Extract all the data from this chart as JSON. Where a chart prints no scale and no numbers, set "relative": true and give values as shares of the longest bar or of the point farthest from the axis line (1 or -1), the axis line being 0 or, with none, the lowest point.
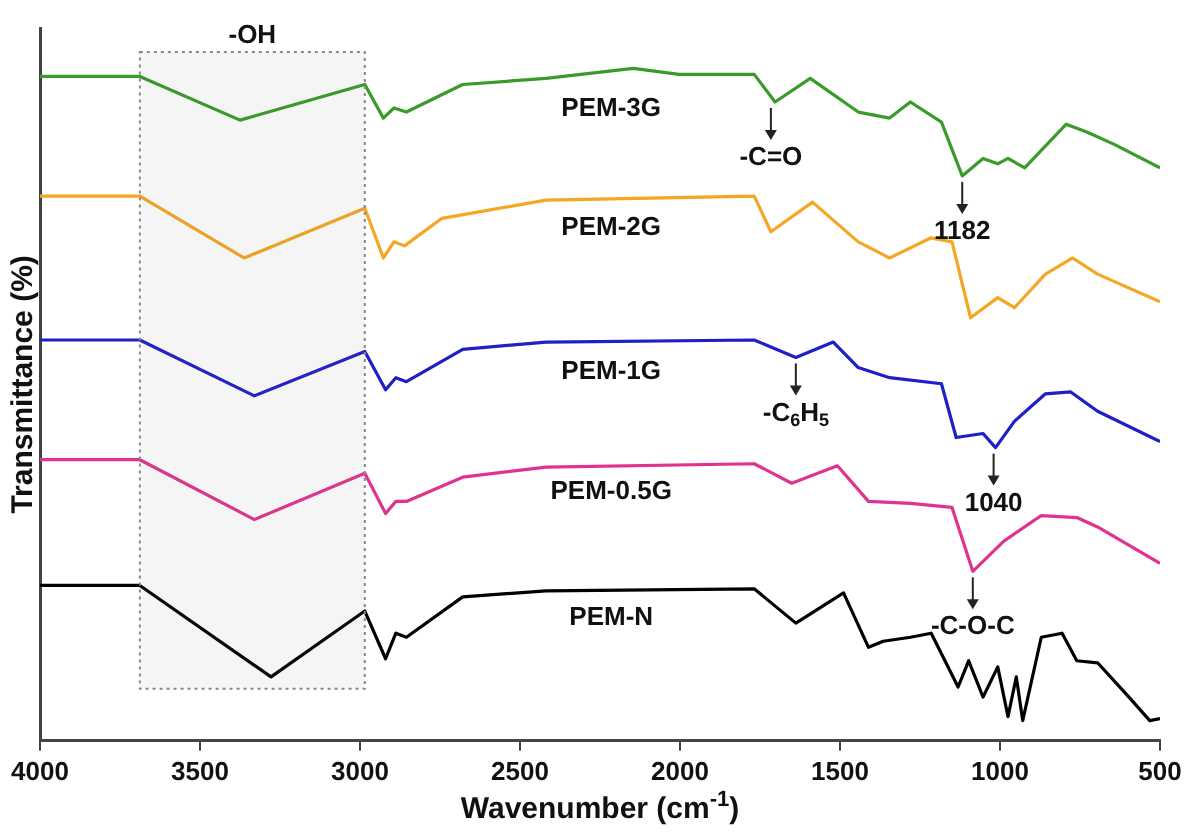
{
  "chart_data": {
    "type": "line",
    "relative": true,
    "xlabel": "Wavenumber (cm$^{-1}$)",
    "ylabel": "Transmittance (%)",
    "xlim": [
      4000,
      500
    ],
    "xticks": [
      4000,
      3500,
      3000,
      2500,
      2000,
      1500,
      1000,
      500
    ],
    "legend": false,
    "marker": "none",
    "line_style": "solid",
    "series": [
      {
        "name": "PEM-3G",
        "color": "#3a9a2a",
        "x": [
          4000,
          3688,
          3375,
          2985,
          2927,
          2894,
          2855,
          2679,
          2419,
          2146,
          2003,
          1768,
          1703,
          1593,
          1443,
          1345,
          1280,
          1183,
          1118,
          1053,
          1007,
          975,
          923,
          793,
          727,
          643,
          500
        ],
        "values": [
          0.988,
          0.988,
          0.923,
          0.976,
          0.926,
          0.941,
          0.935,
          0.976,
          0.985,
          1.0,
          0.991,
          0.991,
          0.95,
          0.985,
          0.935,
          0.926,
          0.95,
          0.92,
          0.84,
          0.866,
          0.858,
          0.866,
          0.852,
          0.917,
          0.905,
          0.887,
          0.852
        ]
      },
      {
        "name": "PEM-2G",
        "color": "#f5a623",
        "x": [
          4000,
          3688,
          3362,
          2985,
          2927,
          2894,
          2861,
          2744,
          2419,
          1768,
          1716,
          1586,
          1443,
          1345,
          1215,
          1150,
          1092,
          1007,
          955,
          858,
          773,
          695,
          500
        ],
        "values": [
          0.81,
          0.81,
          0.718,
          0.792,
          0.718,
          0.742,
          0.736,
          0.777,
          0.804,
          0.81,
          0.757,
          0.801,
          0.742,
          0.718,
          0.748,
          0.742,
          0.629,
          0.659,
          0.644,
          0.694,
          0.718,
          0.694,
          0.653
        ]
      },
      {
        "name": "PEM-1G",
        "color": "#1f1fc8",
        "x": [
          4000,
          3688,
          3330,
          2985,
          2920,
          2888,
          2855,
          2679,
          2419,
          1768,
          1638,
          1521,
          1443,
          1345,
          1183,
          1137,
          1053,
          1014,
          955,
          858,
          780,
          695,
          500
        ],
        "values": [
          0.596,
          0.596,
          0.513,
          0.579,
          0.522,
          0.54,
          0.534,
          0.582,
          0.593,
          0.596,
          0.57,
          0.593,
          0.555,
          0.54,
          0.531,
          0.451,
          0.457,
          0.436,
          0.475,
          0.516,
          0.519,
          0.49,
          0.445
        ]
      },
      {
        "name": "PEM-0.5G",
        "color": "#e0338f",
        "x": [
          4000,
          3688,
          3330,
          2985,
          2920,
          2888,
          2855,
          2679,
          2419,
          1768,
          1651,
          1508,
          1411,
          1280,
          1150,
          1085,
          988,
          871,
          760,
          695,
          500
        ],
        "values": [
          0.418,
          0.418,
          0.329,
          0.398,
          0.338,
          0.356,
          0.356,
          0.392,
          0.407,
          0.412,
          0.383,
          0.409,
          0.356,
          0.353,
          0.347,
          0.252,
          0.297,
          0.335,
          0.332,
          0.318,
          0.264
        ]
      },
      {
        "name": "PEM-N",
        "color": "#000000",
        "x": [
          4000,
          3688,
          3278,
          2985,
          2920,
          2888,
          2855,
          2679,
          2419,
          1768,
          1638,
          1489,
          1411,
          1365,
          1280,
          1215,
          1131,
          1098,
          1053,
          1007,
          975,
          949,
          929,
          871,
          806,
          760,
          695,
          597,
          532,
          500
        ],
        "values": [
          0.231,
          0.231,
          0.095,
          0.193,
          0.122,
          0.16,
          0.154,
          0.214,
          0.223,
          0.226,
          0.175,
          0.22,
          0.139,
          0.148,
          0.154,
          0.16,
          0.08,
          0.119,
          0.065,
          0.11,
          0.036,
          0.095,
          0.03,
          0.154,
          0.16,
          0.119,
          0.116,
          0.065,
          0.03,
          0.033
        ]
      }
    ],
    "bands": [
      {
        "axis": "x",
        "from": 3688,
        "to": 2985,
        "label": "-OH"
      }
    ],
    "annotations": [
      {
        "text": "-C=O",
        "x": 1716,
        "y": 0.95
      },
      {
        "text": "1182",
        "x": 1118,
        "y": 0.84
      },
      {
        "text": "-C$_{6}$H$_{5}$",
        "x": 1638,
        "y": 0.57
      },
      {
        "text": "1040",
        "x": 1020,
        "y": 0.436
      },
      {
        "text": "-C-O-C",
        "x": 1085,
        "y": 0.252
      }
    ]
  }
}
